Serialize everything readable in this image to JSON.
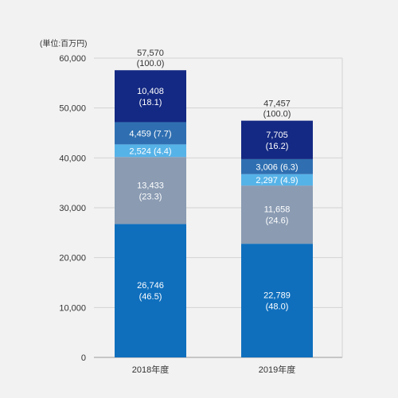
{
  "chart_data": {
    "type": "bar",
    "stacked": true,
    "unit": "(単位:百万円)",
    "categories": [
      "2018年度",
      "2019年度"
    ],
    "ylim": [
      0,
      60000
    ],
    "yticks": [
      "0",
      "10,000",
      "20,000",
      "30,000",
      "40,000",
      "50,000",
      "60,000"
    ],
    "ytick_values": [
      0,
      10000,
      20000,
      30000,
      40000,
      50000,
      60000
    ],
    "grid": true,
    "series": [
      {
        "color": "#0f6fbd",
        "values": [
          26746,
          22789
        ],
        "labels": [
          [
            "26,746",
            "(46.5)"
          ],
          [
            "22,789",
            "(48.0)"
          ]
        ]
      },
      {
        "color": "#8a9bb2",
        "values": [
          13433,
          11658
        ],
        "labels": [
          [
            "13,433",
            "(23.3)"
          ],
          [
            "11,658",
            "(24.6)"
          ]
        ]
      },
      {
        "color": "#56b3e8",
        "values": [
          2524,
          2297
        ],
        "labels": [
          [
            "2,524 (4.4)"
          ],
          [
            "2,297 (4.9)"
          ]
        ]
      },
      {
        "color": "#2f6fb1",
        "values": [
          4459,
          3006
        ],
        "labels": [
          [
            "4,459 (7.7)"
          ],
          [
            "3,006 (6.3)"
          ]
        ]
      },
      {
        "color": "#142983",
        "values": [
          10408,
          7705
        ],
        "labels": [
          [
            "10,408",
            "(18.1)"
          ],
          [
            "7,705",
            "(16.2)"
          ]
        ]
      }
    ],
    "totals": [
      57570,
      47457
    ],
    "total_labels": [
      [
        "57,570",
        "(100.0)"
      ],
      [
        "47,457",
        "(100.0)"
      ]
    ]
  }
}
